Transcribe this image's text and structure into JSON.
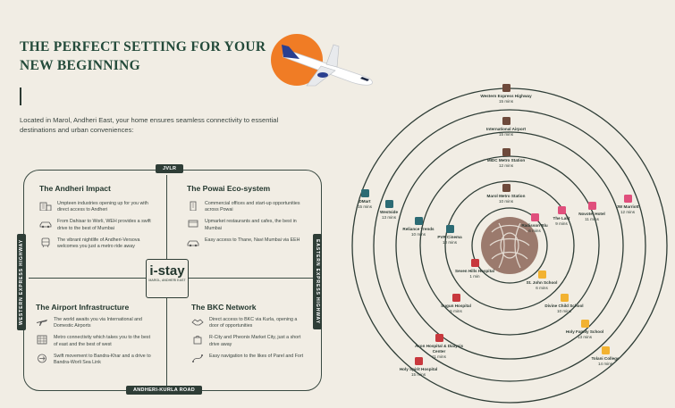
{
  "header": {
    "title_line1": "THE PERFECT SETTING FOR YOUR",
    "title_line2": "NEW BEGINNING",
    "intro": "Located in Marol, Andheri East, your home ensures seamless connectivity to essential destinations and urban conveniences:"
  },
  "roads": {
    "top": "JVLR",
    "bottom": "ANDHERI-KURLA ROAD",
    "left": "WESTERN EXPRESS HIGHWAY",
    "right": "EASTERN EXPRESS HIGHWAY"
  },
  "logo": {
    "main": "i-stay",
    "sub": "MAROL, ANDHERI EAST"
  },
  "quadrants": {
    "andheri": {
      "title": "The Andheri Impact",
      "items": [
        {
          "icon": "office-building-icon",
          "text": "Umpteen industries opening up for you with direct access to Andheri"
        },
        {
          "icon": "car-icon",
          "text": "From Dahisar to Worli, WEH provides a swift drive to the best of Mumbai"
        },
        {
          "icon": "metro-train-icon",
          "text": "The vibrant nightlife of Andheri-Versova welcomes you just a metro ride away"
        }
      ]
    },
    "powai": {
      "title": "The Powai Eco-system",
      "items": [
        {
          "icon": "office-tower-icon",
          "text": "Commercial offices and start-up opportunities across Powai"
        },
        {
          "icon": "restaurant-icon",
          "text": "Upmarket restaurants and cafes, the best in Mumbai"
        },
        {
          "icon": "car-icon",
          "text": "Easy access to Thane, Navi Mumbai via EEH"
        }
      ]
    },
    "airport": {
      "title": "The Airport Infrastructure",
      "items": [
        {
          "icon": "airplane-icon",
          "text": "The world awaits you via International and Domestic Airports"
        },
        {
          "icon": "metro-grid-icon",
          "text": "Metro connectivity which takes you to the best of east and the best of west"
        },
        {
          "icon": "road-icon",
          "text": "Swift movement to Bandra-Khar and a drive to Bandra-Worli Sea Link"
        }
      ]
    },
    "bkc": {
      "title": "The BKC Network",
      "items": [
        {
          "icon": "handshake-icon",
          "text": "Direct access to BKC via Kurla, opening a door of opportunities"
        },
        {
          "icon": "shopping-bag-icon",
          "text": "R-City and Pheonix Market City, just a short drive away"
        },
        {
          "icon": "route-icon",
          "text": "Easy navigation to the likes of Parel and Fort"
        }
      ]
    }
  },
  "colors": {
    "dark": "#2e3d36",
    "landmark": "#6e4a3b",
    "shopping": "#2c6b74",
    "hotel": "#e04f7c",
    "education": "#f2b231",
    "hospital": "#c8383d",
    "sun": "#f07c25"
  },
  "connectivity": [
    {
      "name": "Western Express Highway",
      "time": "15 mins",
      "category": "landmark",
      "icon": "location-pin-icon"
    },
    {
      "name": "International Airport",
      "time": "15 mins",
      "category": "landmark",
      "icon": "location-pin-icon"
    },
    {
      "name": "MIDC Metro Station",
      "time": "12 mins",
      "category": "landmark",
      "icon": "location-pin-icon"
    },
    {
      "name": "Marol Metro Station",
      "time": "10 mins",
      "category": "landmark",
      "icon": "location-pin-icon"
    },
    {
      "name": "DMart",
      "time": "15 mins",
      "category": "shopping",
      "icon": "store-icon"
    },
    {
      "name": "Westside",
      "time": "13 mins",
      "category": "shopping",
      "icon": "store-icon"
    },
    {
      "name": "Reliance Trends",
      "time": "10 mins",
      "category": "shopping",
      "icon": "store-icon"
    },
    {
      "name": "PVR Cinema",
      "time": "10 mins",
      "category": "shopping",
      "icon": "store-icon"
    },
    {
      "name": "Radisson Blu",
      "time": "6 mins",
      "category": "hotel",
      "icon": "hotel-icon"
    },
    {
      "name": "The Lalit",
      "time": "9 mins",
      "category": "hotel",
      "icon": "hotel-icon"
    },
    {
      "name": "Novotel Hotel",
      "time": "11 mins",
      "category": "hotel",
      "icon": "hotel-icon"
    },
    {
      "name": "JW Marriott",
      "time": "12 mins",
      "category": "hotel",
      "icon": "hotel-icon"
    },
    {
      "name": "St. John School",
      "time": "6 mins",
      "category": "education",
      "icon": "school-icon"
    },
    {
      "name": "Divine Child School",
      "time": "10 mins",
      "category": "education",
      "icon": "school-icon"
    },
    {
      "name": "Holy Family School",
      "time": "13 mins",
      "category": "education",
      "icon": "school-icon"
    },
    {
      "name": "Tolani College",
      "time": "14 mins",
      "category": "education",
      "icon": "school-icon"
    },
    {
      "name": "Seven Hills Hospital",
      "time": "1 min",
      "category": "hospital",
      "icon": "hospital-icon"
    },
    {
      "name": "Sugun Hospital",
      "time": "5 mins",
      "category": "hospital",
      "icon": "hospital-icon"
    },
    {
      "name": "Axon Hospital & Dialysis Center",
      "time": "11 mins",
      "category": "hospital",
      "icon": "hospital-icon"
    },
    {
      "name": "Holy Spirit Hospital",
      "time": "15 mins",
      "category": "hospital",
      "icon": "hospital-icon"
    }
  ]
}
